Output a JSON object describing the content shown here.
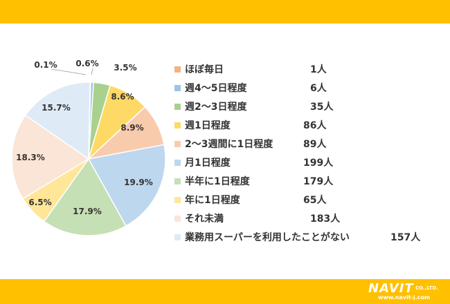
{
  "chart_data": {
    "type": "pie",
    "categories": [
      "ほぼ毎日",
      "週4～5日程度",
      "週2～3日程度",
      "週1日程度",
      "2～3週間に1日程度",
      "月1日程度",
      "半年に1日程度",
      "年に1日程度",
      "それ未満",
      "業務用スーパーを利用したことがない"
    ],
    "counts": [
      "1人",
      "6人",
      "35人",
      "86人",
      "89人",
      "199人",
      "179人",
      "65人",
      "183人",
      "157人"
    ],
    "values": [
      0.1,
      0.6,
      3.5,
      8.6,
      8.9,
      19.9,
      17.9,
      6.5,
      18.3,
      15.7
    ],
    "value_labels": [
      "0.1%",
      "0.6%",
      "3.5%",
      "8.6%",
      "8.9%",
      "19.9%",
      "17.9%",
      "6.5%",
      "18.3%",
      "15.7%"
    ],
    "colors": [
      "#f4b183",
      "#9dc3e6",
      "#a9d18e",
      "#ffd966",
      "#f8cbad",
      "#bdd7ee",
      "#c5e0b4",
      "#ffe699",
      "#fbe5d6",
      "#deebf7"
    ],
    "legend_position": "right"
  },
  "logo": {
    "main": "NAVIT",
    "suffix": "CO.,LTD.",
    "url": "www.navit-j.com"
  }
}
